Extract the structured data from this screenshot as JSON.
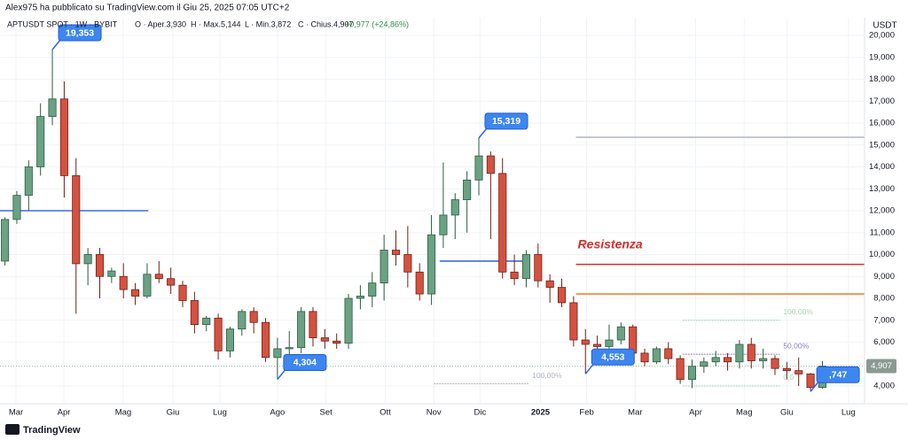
{
  "author_line": "Alex975 ha pubblicato su TradingView.com il Giu 25, 2025 07:05 UTC+2",
  "header": {
    "symbol": "APTUSDT SPOT · 1W · BYBIT",
    "open": "O · Aper.3,930",
    "high": "H · Max.5,144",
    "low": "L · Min.3,872",
    "close": "C · Chius.4,907",
    "change": "+0,977 (+24,86%)"
  },
  "footer": "TradingView",
  "chart_data": {
    "type": "candlestick",
    "y_unit": "USDT",
    "up_color": "#6aa283",
    "down_color": "#d6513f",
    "up_border": "#2d5c41",
    "down_border": "#6e2016",
    "grid": true,
    "x": [
      0,
      1,
      2,
      3,
      4,
      5,
      6,
      7,
      8,
      9,
      10,
      11,
      12,
      13,
      14,
      15,
      16,
      17,
      18,
      19,
      20,
      21,
      22,
      23,
      24,
      25,
      26,
      27,
      28,
      29,
      30,
      31,
      32,
      33,
      34,
      35,
      36,
      37,
      38,
      39,
      40,
      41,
      42,
      43,
      44,
      45,
      46,
      47,
      48,
      49,
      50,
      51,
      52,
      53,
      54,
      55,
      56,
      57,
      58,
      59,
      60,
      61,
      62,
      63,
      64,
      65,
      66,
      67,
      68,
      69
    ],
    "open": [
      9700,
      11600,
      12700,
      14000,
      16300,
      17100,
      13600,
      9580,
      10000,
      9000,
      9000,
      8400,
      8100,
      9100,
      8900,
      8600,
      7900,
      6800,
      7100,
      5600,
      6600,
      7400,
      6900,
      5300,
      5700,
      5750,
      7400,
      6200,
      6050,
      5950,
      8000,
      8100,
      8700,
      10200,
      10000,
      9200,
      8200,
      10900,
      11800,
      12500,
      13400,
      14500,
      13700,
      9200,
      8900,
      10000,
      8800,
      8500,
      7800,
      6100,
      5900,
      5800,
      6100,
      6700,
      5500,
      5100,
      5700,
      5250,
      4300,
      4900,
      5100,
      5300,
      5100,
      5900,
      5150,
      5250,
      4800,
      4700,
      4550,
      3930
    ],
    "high": [
      11700,
      12900,
      14300,
      16900,
      19353,
      17900,
      14400,
      10300,
      10300,
      9400,
      9600,
      8700,
      9600,
      9700,
      9400,
      8800,
      8300,
      7200,
      7300,
      6700,
      7500,
      7600,
      7100,
      6200,
      6500,
      7600,
      7600,
      6600,
      6400,
      8200,
      8600,
      9200,
      10900,
      11100,
      11300,
      9600,
      11800,
      14200,
      12800,
      13800,
      15319,
      14700,
      14400,
      10000,
      10200,
      10500,
      9100,
      8900,
      8100,
      6600,
      6300,
      6800,
      6900,
      6800,
      5700,
      5800,
      6000,
      5400,
      5200,
      5300,
      5600,
      5500,
      6100,
      6200,
      5700,
      5400,
      5100,
      5300,
      4600,
      5144
    ],
    "low": [
      9500,
      11400,
      12000,
      13600,
      15900,
      12600,
      7300,
      8600,
      8000,
      8700,
      8000,
      7700,
      8000,
      8700,
      8200,
      7600,
      6400,
      6500,
      5200,
      5300,
      6300,
      6400,
      5100,
      4304,
      5300,
      5500,
      5800,
      5700,
      5700,
      5700,
      7500,
      7600,
      7900,
      9500,
      8500,
      7900,
      7700,
      10300,
      10700,
      11000,
      12700,
      10700,
      8900,
      8600,
      8500,
      8500,
      7800,
      7600,
      5800,
      4553,
      5500,
      5300,
      5900,
      5200,
      4900,
      5000,
      5000,
      4100,
      3900,
      4600,
      4900,
      4700,
      4800,
      4800,
      4800,
      4500,
      4300,
      4000,
      3747,
      3872
    ],
    "close": [
      11600,
      12700,
      14000,
      16300,
      17100,
      13600,
      9580,
      10000,
      9000,
      9250,
      8400,
      8100,
      9100,
      8900,
      8600,
      7900,
      6800,
      7100,
      5600,
      6600,
      7400,
      6900,
      5300,
      5700,
      5750,
      7400,
      6200,
      6050,
      5950,
      8000,
      8100,
      8700,
      10200,
      10000,
      9200,
      8200,
      10900,
      11800,
      12500,
      13400,
      14500,
      13700,
      9200,
      8900,
      10000,
      8800,
      8500,
      7800,
      6100,
      5900,
      5800,
      6100,
      6700,
      5500,
      5100,
      5700,
      5250,
      4300,
      4900,
      5100,
      5300,
      5100,
      5900,
      5150,
      5250,
      4800,
      4700,
      4550,
      3930,
      4907
    ],
    "xlim": [
      -0.42,
      72.56
    ],
    "ylim": [
      3232,
      20727
    ],
    "xticks": [
      {
        "value": 0.93,
        "label": "Mar"
      },
      {
        "value": 4.97,
        "label": "Apr"
      },
      {
        "value": 9.98,
        "label": "Mag"
      },
      {
        "value": 14.18,
        "label": "Giu"
      },
      {
        "value": 18.14,
        "label": "Lug"
      },
      {
        "value": 23.0,
        "label": "Ago"
      },
      {
        "value": 27.1,
        "label": "Set"
      },
      {
        "value": 32.1,
        "label": "Ott"
      },
      {
        "value": 36.2,
        "label": "Nov"
      },
      {
        "value": 40.1,
        "label": "Dic"
      },
      {
        "value": 45.2,
        "label": "2025"
      },
      {
        "value": 49.1,
        "label": "Feb"
      },
      {
        "value": 53.2,
        "label": "Mar"
      },
      {
        "value": 58.3,
        "label": "Apr"
      },
      {
        "value": 62.4,
        "label": "Mag"
      },
      {
        "value": 66.0,
        "label": "Giu"
      },
      {
        "value": 71.2,
        "label": "Lug"
      }
    ],
    "yticks": [
      {
        "value": 4000,
        "label": "4,000"
      },
      {
        "value": 5000,
        "label": "5,000"
      },
      {
        "value": 6000,
        "label": "6,000"
      },
      {
        "value": 7000,
        "label": "7,000"
      },
      {
        "value": 8000,
        "label": "8,000"
      },
      {
        "value": 9000,
        "label": "9,000"
      },
      {
        "value": 10000,
        "label": "10,000"
      },
      {
        "value": 11000,
        "label": "11,000"
      },
      {
        "value": 12000,
        "label": "12,000"
      },
      {
        "value": 13000,
        "label": "13,000"
      },
      {
        "value": 14000,
        "label": "14,000"
      },
      {
        "value": 15000,
        "label": "15,000"
      },
      {
        "value": 16000,
        "label": "16,000"
      },
      {
        "value": 17000,
        "label": "17,000"
      },
      {
        "value": 18000,
        "label": "18,000"
      },
      {
        "value": 19000,
        "label": "19,000"
      },
      {
        "value": 20000,
        "label": "20,000"
      }
    ],
    "annotations": [
      {
        "label": "19,353",
        "value": 19353,
        "at": 4
      },
      {
        "label": "15,319",
        "value": 15319,
        "at": 40
      },
      {
        "label": "4,304",
        "value": 4304,
        "at": 23
      },
      {
        "label": "4,553",
        "value": 4553,
        "at": 49
      },
      {
        "label": ",747",
        "value": 3747,
        "at": 68
      }
    ],
    "levels": [
      {
        "value": 12000,
        "color": "#3b6fd6",
        "from": -0.42,
        "to": 12.1
      },
      {
        "value": 9700,
        "color": "#3b6fd6",
        "from": 36.7,
        "to": 44.3
      },
      {
        "value": 9550,
        "color": "#d32f2f",
        "from": 48.2,
        "to": 72.56,
        "label": "Resistenza"
      },
      {
        "value": 8200,
        "color": "#f0842c",
        "from": 48.2,
        "to": 72.56
      },
      {
        "value": 15350,
        "color": "#b8bcc6",
        "from": 48.2,
        "to": 72.56
      }
    ],
    "fib": [
      {
        "value": 4100,
        "color": "#b0b4be",
        "from": 36.2,
        "to": 44.2,
        "label": "100,00%"
      },
      {
        "value": 7000,
        "color": "#a5d6b8",
        "from": 57.2,
        "to": 65.4,
        "label": "100,00%"
      },
      {
        "value": 5450,
        "color": "#8e7cc3",
        "from": 57.2,
        "to": 65.4,
        "label": "50,00%"
      },
      {
        "value": 4000,
        "color": "#a5d6b8",
        "from": 57.2,
        "to": 65.4,
        "label": "0,0"
      }
    ],
    "last_label": "4,907"
  }
}
